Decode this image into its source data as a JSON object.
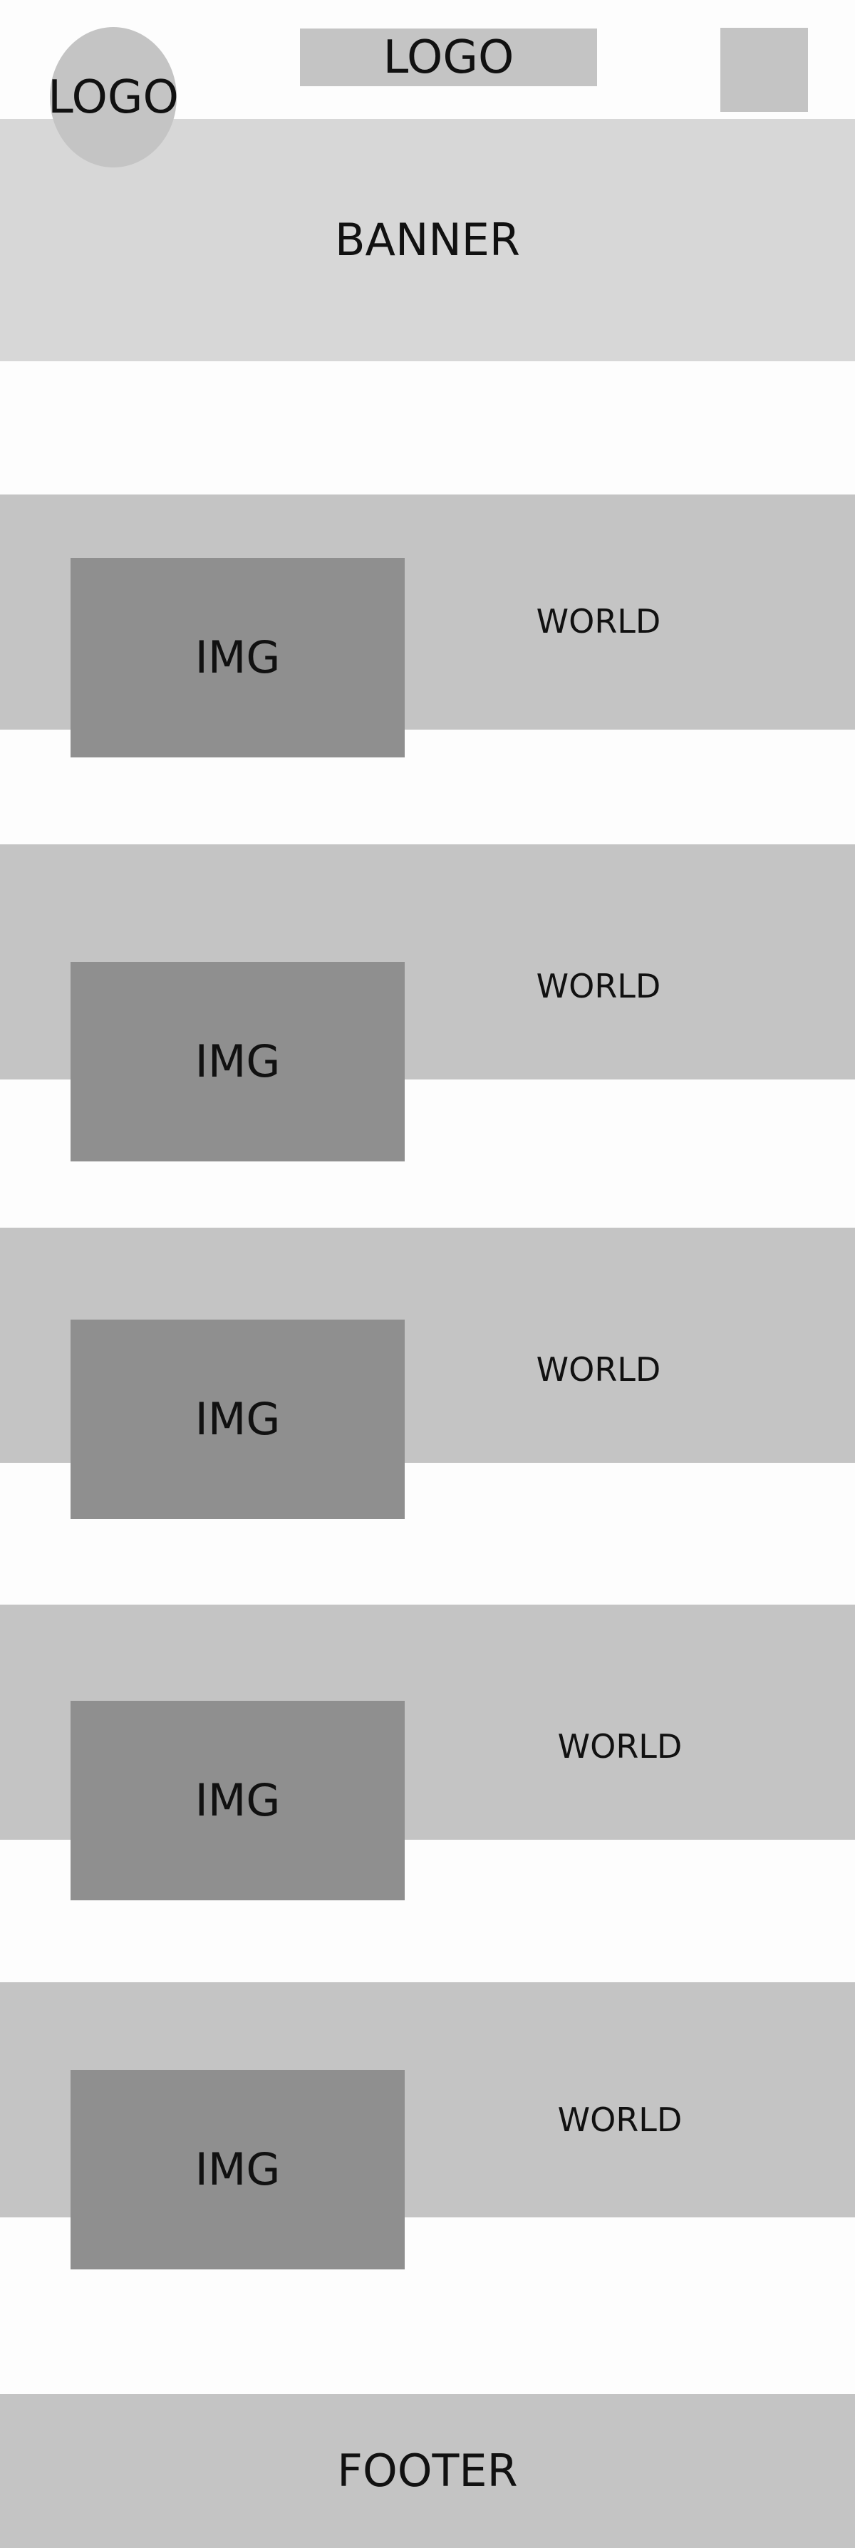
{
  "header": {
    "logo_circle_label": "LOGO",
    "logo_rect_label": "LOGO"
  },
  "banner": {
    "label": "BANNER"
  },
  "sections": [
    {
      "img_label": "IMG",
      "text": "WORLD"
    },
    {
      "img_label": "IMG",
      "text": "WORLD"
    },
    {
      "img_label": "IMG",
      "text": "WORLD"
    },
    {
      "img_label": "IMG",
      "text": "WORLD"
    },
    {
      "img_label": "IMG",
      "text": "WORLD"
    }
  ],
  "footer": {
    "label": "FOOTER"
  },
  "colors": {
    "page_bg": "#fdfdfd",
    "block": "#c4c4c4",
    "banner": "#d7d7d7",
    "image": "#8f8f8f",
    "text": "#111111"
  }
}
